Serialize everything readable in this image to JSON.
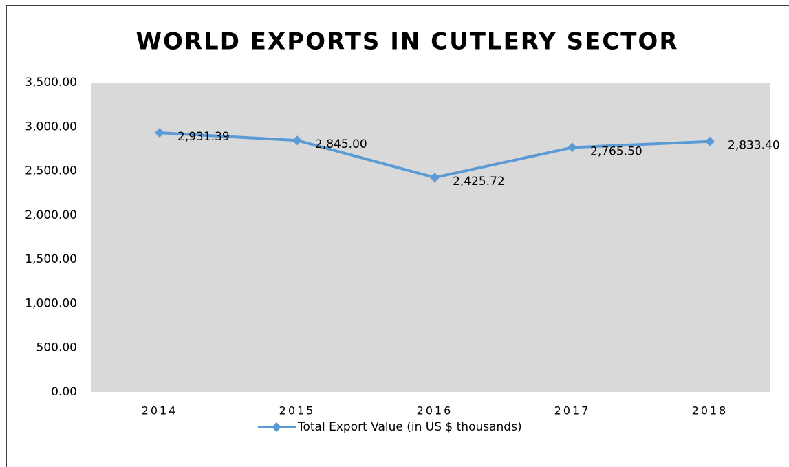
{
  "chart_data": {
    "type": "line",
    "title": "WORLD EXPORTS IN CUTLERY SECTOR",
    "categories": [
      "2014",
      "2015",
      "2016",
      "2017",
      "2018"
    ],
    "series": [
      {
        "name": "Total Export Value (in US $ thousands)",
        "color": "#5b9bd5",
        "values": [
          2931.39,
          2845.0,
          2425.72,
          2765.5,
          2833.4
        ],
        "value_labels": [
          "2,931.39",
          "2,845.00",
          "2,425.72",
          "2,765.50",
          "2,833.40"
        ]
      }
    ],
    "ylim": [
      0,
      3500
    ],
    "yticks": [
      {
        "value": 0,
        "label": "0.00"
      },
      {
        "value": 500,
        "label": "500.00"
      },
      {
        "value": 1000,
        "label": "1,000.00"
      },
      {
        "value": 1500,
        "label": "1,500.00"
      },
      {
        "value": 2000,
        "label": "2,000.00"
      },
      {
        "value": 2500,
        "label": "2,500.00"
      },
      {
        "value": 3000,
        "label": "3,000.00"
      },
      {
        "value": 3500,
        "label": "3,500.00"
      }
    ],
    "plot_background": "#d9d9d9",
    "legend": "bottom"
  }
}
